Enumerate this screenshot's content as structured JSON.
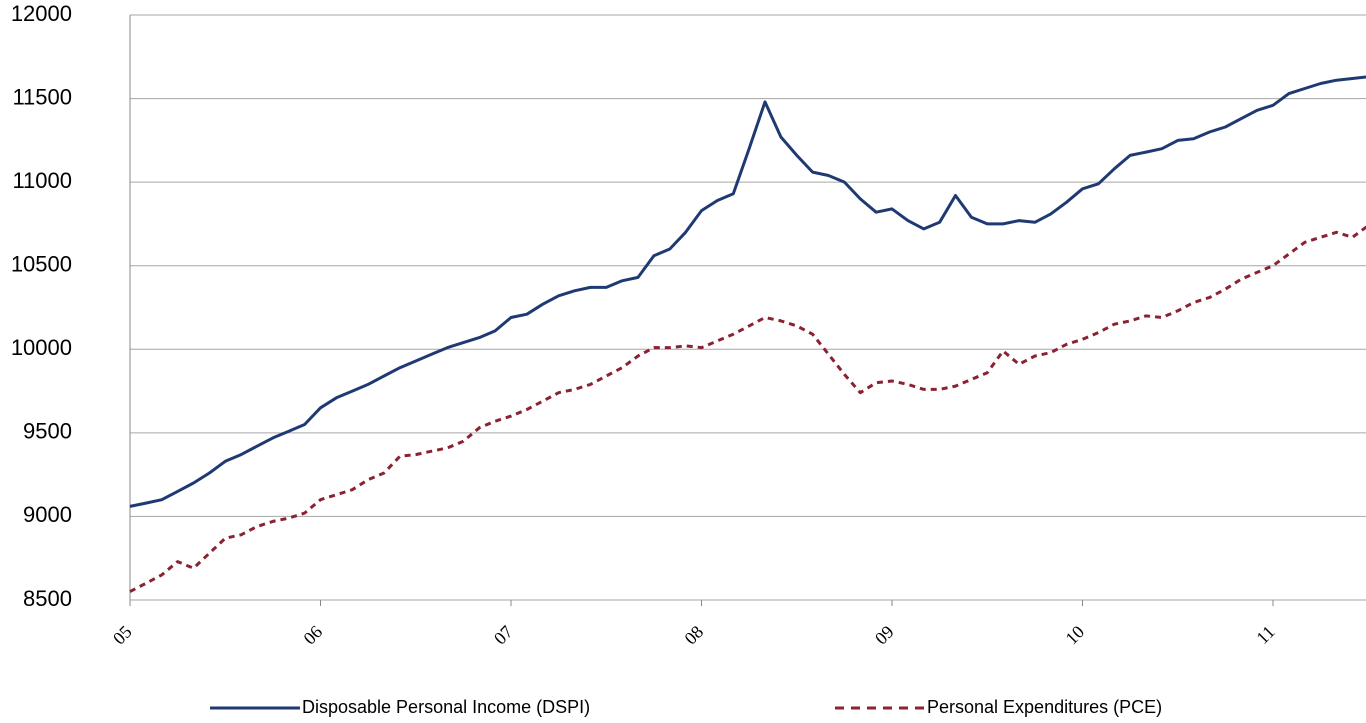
{
  "chart_data": {
    "type": "line",
    "categories": [
      "05",
      null,
      null,
      null,
      null,
      null,
      null,
      null,
      null,
      null,
      null,
      null,
      "06",
      null,
      null,
      null,
      null,
      null,
      null,
      null,
      null,
      null,
      null,
      null,
      "07",
      null,
      null,
      null,
      null,
      null,
      null,
      null,
      null,
      null,
      null,
      null,
      "08",
      null,
      null,
      null,
      null,
      null,
      null,
      null,
      null,
      null,
      null,
      null,
      "09",
      null,
      null,
      null,
      null,
      null,
      null,
      null,
      null,
      null,
      null,
      null,
      "10",
      null,
      null,
      null,
      null,
      null,
      null,
      null,
      null,
      null,
      null,
      null,
      "11",
      null,
      null,
      null,
      null,
      null,
      null
    ],
    "series": [
      {
        "name": "Disposable Personal Income (DSPI)",
        "color": "#1f3a73",
        "style": "solid",
        "values": [
          9060,
          9080,
          9100,
          9150,
          9200,
          9260,
          9330,
          9370,
          9420,
          9470,
          9510,
          9550,
          9650,
          9710,
          9750,
          9790,
          9840,
          9890,
          9930,
          9970,
          10010,
          10040,
          10070,
          10110,
          10190,
          10210,
          10270,
          10320,
          10350,
          10370,
          10370,
          10410,
          10430,
          10560,
          10600,
          10700,
          10830,
          10890,
          10930,
          11200,
          11480,
          11270,
          11160,
          11060,
          11040,
          11000,
          10900,
          10820,
          10840,
          10770,
          10720,
          10760,
          10920,
          10790,
          10750,
          10750,
          10770,
          10760,
          10810,
          10880,
          10960,
          10990,
          11080,
          11160,
          11180,
          11200,
          11250,
          11260,
          11300,
          11330,
          11380,
          11430,
          11460,
          11530,
          11560,
          11590,
          11610,
          11620,
          11630
        ]
      },
      {
        "name": "Personal Expenditures (PCE)",
        "color": "#8b2232",
        "style": "dashed",
        "values": [
          8550,
          8600,
          8650,
          8730,
          8690,
          8780,
          8870,
          8890,
          8940,
          8970,
          8990,
          9020,
          9100,
          9130,
          9160,
          9220,
          9260,
          9360,
          9370,
          9390,
          9410,
          9450,
          9530,
          9570,
          9600,
          9640,
          9690,
          9740,
          9760,
          9790,
          9840,
          9890,
          9960,
          10010,
          10010,
          10020,
          10010,
          10050,
          10090,
          10140,
          10190,
          10170,
          10140,
          10090,
          9970,
          9850,
          9740,
          9800,
          9810,
          9790,
          9760,
          9760,
          9780,
          9820,
          9860,
          9990,
          9910,
          9960,
          9980,
          10030,
          10060,
          10100,
          10150,
          10170,
          10200,
          10190,
          10230,
          10280,
          10310,
          10360,
          10420,
          10460,
          10500,
          10570,
          10640,
          10670,
          10700,
          10670,
          10740
        ]
      }
    ],
    "ylim": [
      8500,
      12000
    ],
    "yticks": [
      8500,
      9000,
      9500,
      10000,
      10500,
      11000,
      11500,
      12000
    ],
    "grid": true,
    "legend": "bottom"
  }
}
